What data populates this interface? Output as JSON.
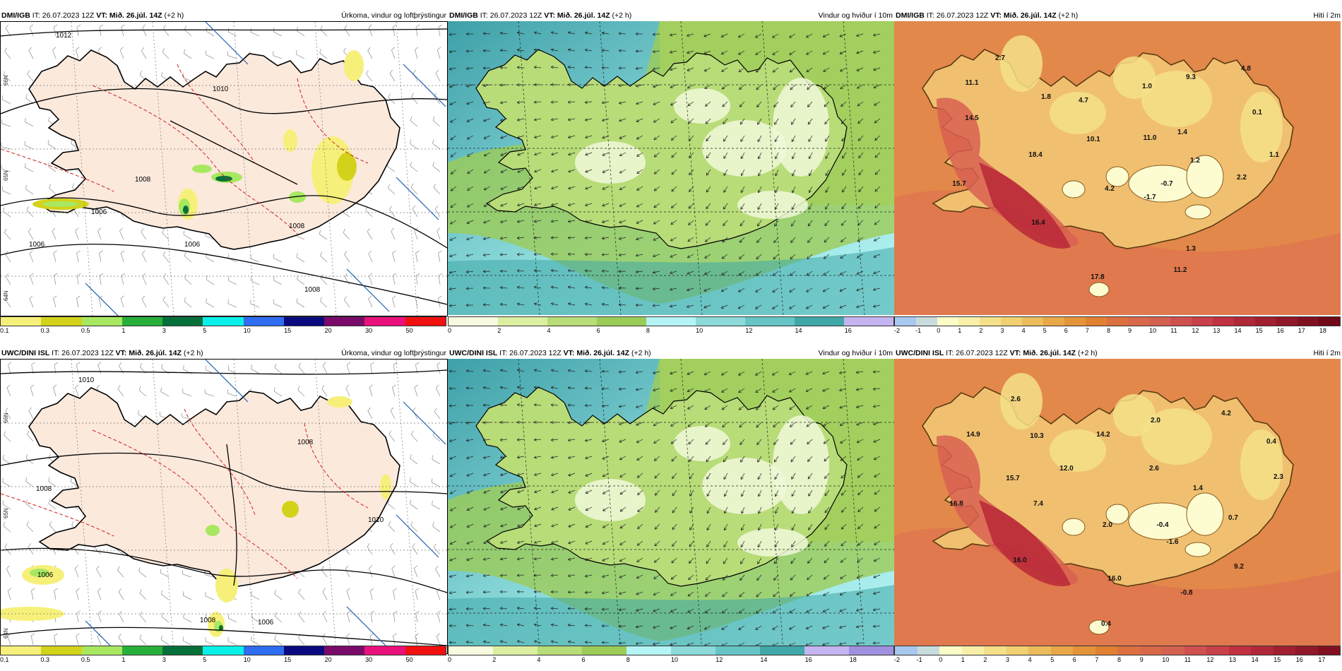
{
  "rows": [
    {
      "model": "DMI/IGB",
      "it": "IT: 26.07.2023 12Z",
      "vt": "VT: Mið. 26.júl. 14Z",
      "lead": "(+2 h)",
      "panels": {
        "precip": {
          "title": "Úrkoma, vindur og loftþrýstingur",
          "legend": [
            "0.1",
            "0.3",
            "0.5",
            "1",
            "3",
            "5",
            "10",
            "15",
            "20",
            "30",
            "50"
          ],
          "isobars": [
            "1012",
            "1010",
            "1008",
            "1008",
            "1006",
            "1006",
            "1008",
            "1006"
          ],
          "lat_labels": [
            "66N",
            "65N",
            "64N"
          ]
        },
        "wind": {
          "title": "Vindur og hviður í 10m",
          "legend": [
            "0",
            "2",
            "4",
            "6",
            "8",
            "10",
            "12",
            "14",
            "16"
          ]
        },
        "temp": {
          "title": "Hiti í 2m",
          "legend": [
            "-2",
            "-1",
            "0",
            "1",
            "2",
            "3",
            "4",
            "5",
            "6",
            "7",
            "8",
            "9",
            "10",
            "11",
            "12",
            "13",
            "14",
            "15",
            "16",
            "17",
            "18"
          ],
          "labels": [
            "2.7",
            "11.1",
            "14.5",
            "1.8",
            "4.7",
            "1.0",
            "9.3",
            "4.8",
            "10.1",
            "11.0",
            "1.4",
            "0.1",
            "18.4",
            "1.2",
            "1.1",
            "15.7",
            "4.2",
            "-0.7",
            "2.2",
            "-1.7",
            "16.4",
            "1.3",
            "17.8",
            "11.2"
          ]
        }
      }
    },
    {
      "model": "UWC/DINI ISL",
      "it": "IT: 26.07.2023 12Z",
      "vt": "VT: Mið. 26.júl. 14Z",
      "lead": "(+2 h)",
      "panels": {
        "precip": {
          "title": "Úrkoma, vindur og loftþrýstingur",
          "legend": [
            "0.1",
            "0.3",
            "0.5",
            "1",
            "3",
            "5",
            "10",
            "15",
            "20",
            "30",
            "50"
          ],
          "isobars": [
            "1010",
            "1008",
            "1008",
            "1010",
            "1006",
            "1008",
            "1006"
          ],
          "lat_labels": [
            "66N",
            "65N",
            "64N"
          ]
        },
        "wind": {
          "title": "Vindur og hviður í 10m",
          "legend": [
            "0",
            "2",
            "4",
            "6",
            "8",
            "10",
            "12",
            "14",
            "16",
            "18"
          ]
        },
        "temp": {
          "title": "Hiti í 2m",
          "legend": [
            "-2",
            "-1",
            "0",
            "1",
            "2",
            "3",
            "4",
            "5",
            "6",
            "7",
            "8",
            "9",
            "10",
            "11",
            "12",
            "13",
            "14",
            "15",
            "16",
            "17"
          ],
          "labels": [
            "2.6",
            "14.9",
            "10.3",
            "14.2",
            "2.0",
            "4.2",
            "0.4",
            "12.0",
            "2.6",
            "2.3",
            "15.7",
            "1.4",
            "16.8",
            "7.4",
            "2.0",
            "-0.4",
            "-1.6",
            "0.7",
            "16.0",
            "9.2",
            "16.0",
            "-0.8",
            "0.4"
          ]
        }
      }
    }
  ],
  "colors": {
    "precip_scale": [
      "#f6f07a",
      "#d2d21a",
      "#a8e860",
      "#26b03a",
      "#06703a",
      "#0af0e8",
      "#2e6cf0",
      "#0a0a80",
      "#7a0a6a",
      "#e8107a",
      "#f01010"
    ],
    "wind_scale": [
      "#f8fbe0",
      "#dcefa0",
      "#b8dc78",
      "#9ccc58",
      "#b4f4f4",
      "#8cdada",
      "#66c4c4",
      "#40a8a8",
      "#c4b4f0",
      "#a090e0"
    ],
    "temp_scale": [
      "#a8c8f0",
      "#c8dcdc",
      "#fcfcc8",
      "#f8f0a8",
      "#f4e088",
      "#f0d070",
      "#ecbc5c",
      "#e8a848",
      "#e49438",
      "#e08030",
      "#dc7040",
      "#d86848",
      "#d46050",
      "#d05050",
      "#c84048",
      "#c03040",
      "#b02838",
      "#a02030",
      "#901828",
      "#801020",
      "#700818"
    ],
    "land_precip": "#fbe9dc",
    "ocean_wind": "#5ab8c0",
    "ocean_temp": "#e2884a"
  }
}
